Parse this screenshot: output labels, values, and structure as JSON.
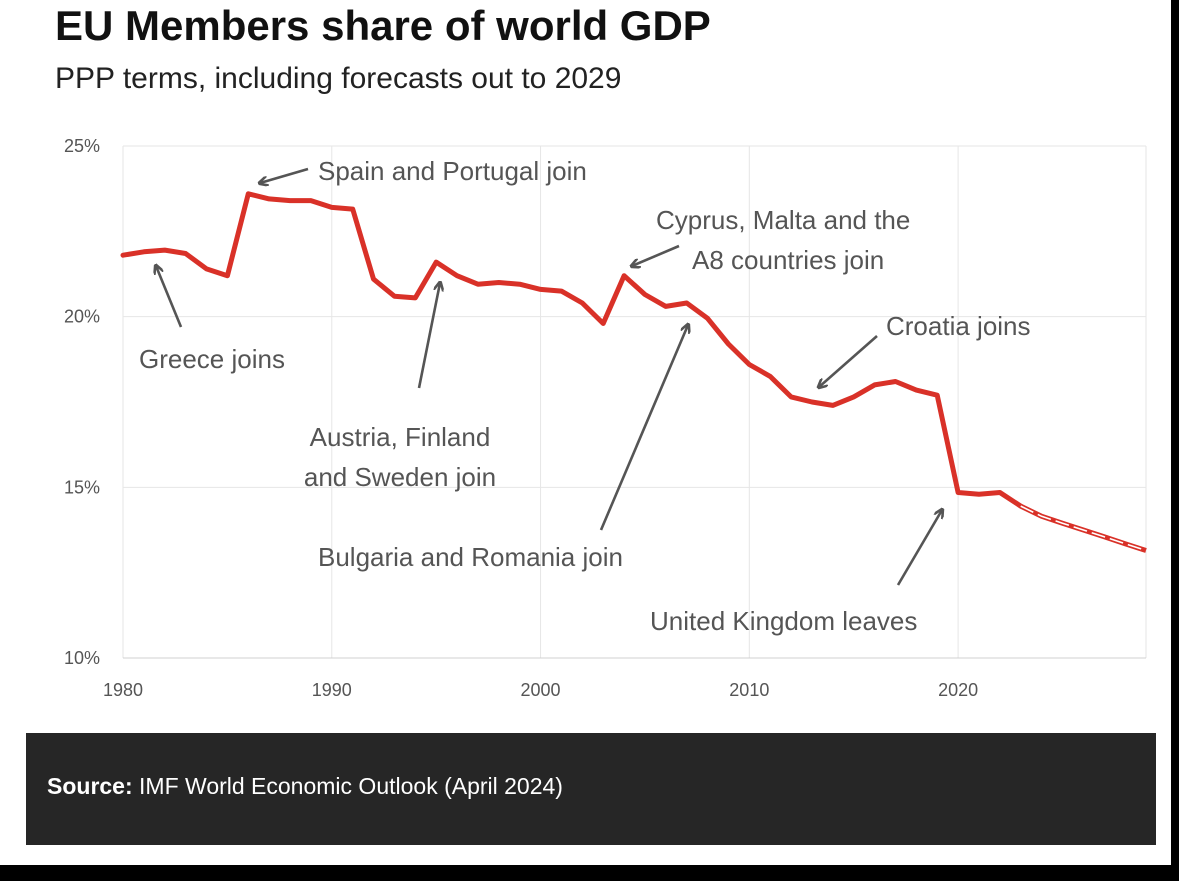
{
  "chart_data": {
    "type": "line",
    "title": "EU Members share of world GDP",
    "subtitle": "PPP terms, including forecasts out to 2029",
    "xlabel": "",
    "ylabel": "",
    "xlim": [
      1980,
      2029
    ],
    "ylim": [
      10,
      25
    ],
    "x_ticks": [
      "1980",
      "1990",
      "2000",
      "2010",
      "2020"
    ],
    "y_ticks": [
      "10%",
      "15%",
      "20%",
      "25%"
    ],
    "grid": true,
    "legend": "none",
    "series": [
      {
        "style": "solid",
        "color": "#d93128",
        "x": [
          1980,
          1981,
          1982,
          1983,
          1984,
          1985,
          1986,
          1987,
          1988,
          1989,
          1990,
          1991,
          1992,
          1993,
          1994,
          1995,
          1996,
          1997,
          1998,
          1999,
          2000,
          2001,
          2002,
          2003,
          2004,
          2005,
          2006,
          2007,
          2008,
          2009,
          2010,
          2011,
          2012,
          2013,
          2014,
          2015,
          2016,
          2017,
          2018,
          2019,
          2020,
          2021,
          2022,
          2023
        ],
        "y": [
          21.8,
          21.9,
          21.95,
          21.85,
          21.4,
          21.2,
          23.6,
          23.45,
          23.4,
          23.4,
          23.2,
          23.15,
          21.1,
          20.6,
          20.55,
          21.6,
          21.2,
          20.95,
          21.0,
          20.95,
          20.8,
          20.75,
          20.4,
          19.8,
          21.2,
          20.65,
          20.3,
          20.4,
          19.95,
          19.2,
          18.6,
          18.25,
          17.65,
          17.5,
          17.4,
          17.65,
          18.0,
          18.1,
          17.85,
          17.7,
          14.85,
          14.8,
          14.85,
          14.45
        ]
      },
      {
        "style": "dashed-forecast",
        "color": "#d93128",
        "x": [
          2023,
          2024,
          2025,
          2026,
          2027,
          2028,
          2029
        ],
        "y": [
          14.45,
          14.15,
          13.95,
          13.75,
          13.55,
          13.35,
          13.15
        ]
      }
    ],
    "annotations": [
      {
        "lines": [
          "Greece joins"
        ],
        "year": 1981
      },
      {
        "lines": [
          "Spain and Portugal join"
        ],
        "year": 1986
      },
      {
        "lines": [
          "Austria, Finland",
          "and Sweden join"
        ],
        "year": 1995
      },
      {
        "lines": [
          "Cyprus, Malta and the",
          "A8 countries join"
        ],
        "year": 2004
      },
      {
        "lines": [
          "Bulgaria and Romania join"
        ],
        "year": 2007
      },
      {
        "lines": [
          "Croatia joins"
        ],
        "year": 2013
      },
      {
        "lines": [
          "United Kingdom leaves"
        ],
        "year": 2020
      }
    ]
  },
  "source": {
    "label": "Source:",
    "text": " IMF World Economic Outlook (April 2024)"
  }
}
